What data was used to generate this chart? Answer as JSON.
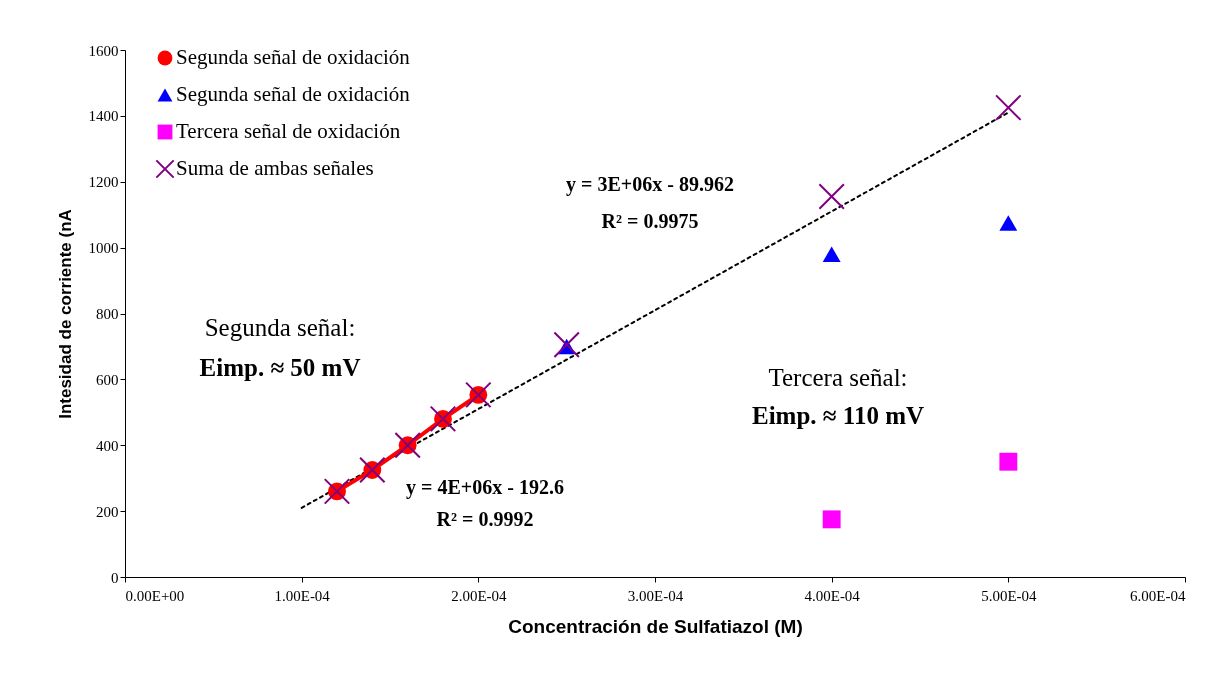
{
  "chart_data": {
    "type": "scatter",
    "xlabel": "Concentración de Sulfatiazol (M)",
    "ylabel": "Intesidad de corriente (nA",
    "xlim": [
      0,
      0.0006
    ],
    "xticks": [
      {
        "value": 0,
        "label": "0.00E+00"
      },
      {
        "value": 0.0001,
        "label": "1.00E-04"
      },
      {
        "value": 0.0002,
        "label": "2.00E-04"
      },
      {
        "value": 0.0003,
        "label": "3.00E-04"
      },
      {
        "value": 0.0004,
        "label": "4.00E-04"
      },
      {
        "value": 0.0005,
        "label": "5.00E-04"
      },
      {
        "value": 0.0006,
        "label": "6.00E-04"
      }
    ],
    "ylim": [
      0,
      1600
    ],
    "yticks": [
      0,
      200,
      400,
      600,
      800,
      1000,
      1200,
      1400,
      1600
    ],
    "grid": false,
    "legend": "top left",
    "series": [
      {
        "type": "line",
        "x": [
          0.0001,
          0.0005
        ],
        "values": [
          210,
          1410
        ],
        "color": "#000000",
        "line_style": "dotted",
        "marker": "none"
      },
      {
        "name": "Segunda señal de oxidación",
        "type": "line",
        "x": [
          0.00012,
          0.00014,
          0.00016,
          0.00018,
          0.0002
        ],
        "values": [
          260,
          325,
          400,
          480,
          553
        ],
        "color": "#ff0000",
        "line_style": "solid",
        "marker": "circle"
      },
      {
        "name": "Segunda señal de oxidación",
        "x": [
          0.00025,
          0.0004,
          0.0005
        ],
        "values": [
          700,
          980,
          1075
        ],
        "color": "#0000ff",
        "marker": "triangle"
      },
      {
        "name": "Tercera señal de oxidación",
        "x": [
          0.0004,
          0.0005
        ],
        "values": [
          175,
          350
        ],
        "color": "#ff00ff",
        "marker": "square"
      },
      {
        "name": "Suma de ambas señales",
        "x": [
          0.00012,
          0.00014,
          0.00016,
          0.00018,
          0.0002,
          0.00025,
          0.0004,
          0.0005
        ],
        "values": [
          260,
          325,
          400,
          480,
          553,
          705,
          1155,
          1425
        ],
        "color": "#800080",
        "marker": "cross"
      }
    ],
    "annotations": [
      "y = 3E+06x - 89.962",
      "R² = 0.9975",
      "Segunda señal:",
      "Eimp. ≈ 50 mV",
      "Tercera señal:",
      "Eimp. ≈ 110 mV",
      "y = 4E+06x - 192.6",
      "R² = 0.9992"
    ]
  }
}
